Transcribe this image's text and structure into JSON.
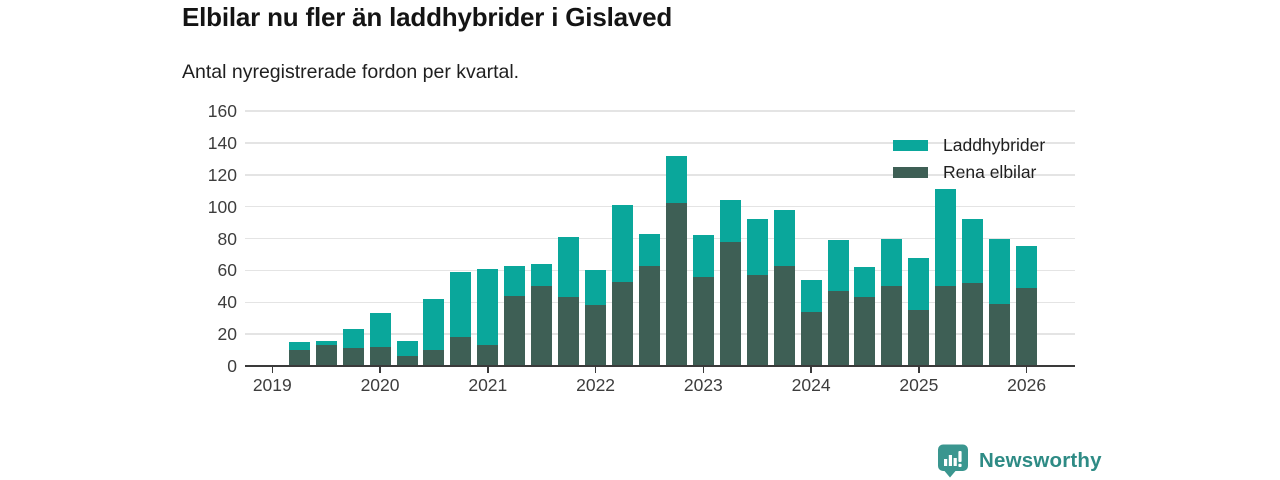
{
  "chart_data": {
    "type": "bar",
    "stacked": true,
    "title": "Elbilar nu fler än laddhybrider i Gislaved",
    "subtitle": "Antal nyregistrerade fordon per kvartal.",
    "categories": [
      "2019 Q2",
      "2019 Q3",
      "2019 Q4",
      "2020 Q1",
      "2020 Q2",
      "2020 Q3",
      "2020 Q4",
      "2021 Q1",
      "2021 Q2",
      "2021 Q3",
      "2021 Q4",
      "2022 Q1",
      "2022 Q2",
      "2022 Q3",
      "2022 Q4",
      "2023 Q1",
      "2023 Q2",
      "2023 Q3",
      "2023 Q4",
      "2024 Q1",
      "2024 Q2",
      "2024 Q3",
      "2024 Q4",
      "2025 Q1",
      "2025 Q2",
      "2025 Q3",
      "2025 Q4",
      "2026 Q1"
    ],
    "series": [
      {
        "name": "Laddhybrider",
        "stack": "top",
        "color": "#0aa79b",
        "values": [
          5,
          3,
          12,
          21,
          10,
          32,
          41,
          48,
          19,
          14,
          38,
          22,
          48,
          20,
          30,
          26,
          26,
          35,
          35,
          20,
          32,
          19,
          30,
          33,
          61,
          40,
          41,
          26
        ]
      },
      {
        "name": "Rena elbilar",
        "stack": "bottom",
        "color": "#3e5f55",
        "values": [
          10,
          13,
          11,
          12,
          6,
          10,
          18,
          13,
          44,
          50,
          43,
          38,
          53,
          63,
          102,
          56,
          78,
          57,
          63,
          34,
          47,
          43,
          50,
          35,
          50,
          52,
          39,
          49
        ]
      }
    ],
    "ylim": [
      0,
      160
    ],
    "ytick_step": 20,
    "yticks": [
      0,
      20,
      40,
      60,
      80,
      100,
      120,
      140,
      160
    ],
    "xticks": [
      "2019",
      "2020",
      "2021",
      "2022",
      "2023",
      "2024",
      "2025",
      "2026"
    ],
    "grid": "horizontal",
    "legend_position": "top-right"
  },
  "legend": {
    "items": [
      {
        "label": "Laddhybrider",
        "color": "#0aa79b"
      },
      {
        "label": "Rena elbilar",
        "color": "#3e5f55"
      }
    ]
  },
  "footer": {
    "brand": "Newsworthy",
    "brand_color": "#2e8b85",
    "logo_icon": "bar-chart-pin-icon",
    "logo_color": "#3a968f"
  }
}
